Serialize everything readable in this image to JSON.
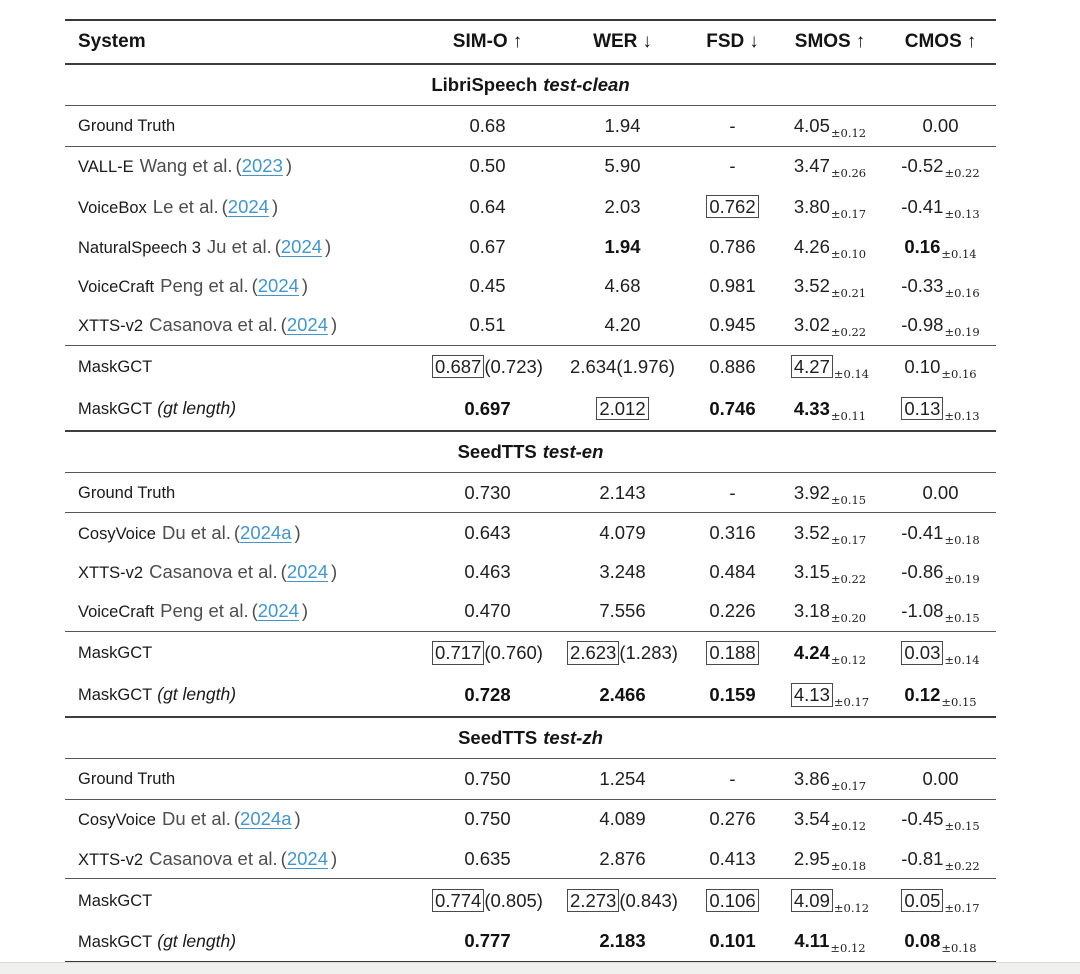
{
  "punct": {
    "open": "(",
    "close": ")"
  },
  "colors": {
    "link": "#4695c8",
    "text": "#1f1f1f",
    "muted_text": "#4e4e4e",
    "rule_heavy": "#383838",
    "rule_light": "#555555",
    "scrollbar_track": "#f0f0ee"
  },
  "table": {
    "columns": [
      {
        "label": "System",
        "arrow": ""
      },
      {
        "label": "SIM-O",
        "arrow": "↑"
      },
      {
        "label": "WER",
        "arrow": "↓"
      },
      {
        "label": "FSD",
        "arrow": "↓"
      },
      {
        "label": "SMOS",
        "arrow": "↑"
      },
      {
        "label": "CMOS",
        "arrow": "↑"
      }
    ],
    "sections": [
      {
        "title": {
          "dataset": "LibriSpeech",
          "subset": "test-clean"
        },
        "groups": [
          [
            {
              "system": {
                "name": "Ground Truth"
              },
              "cells": [
                {
                  "v": "0.68"
                },
                {
                  "v": "1.94"
                },
                {
                  "v": "-"
                },
                {
                  "v": "4.05",
                  "sub": "±0.12"
                },
                {
                  "v": "0.00"
                }
              ]
            }
          ],
          [
            {
              "system": {
                "name": "VALL-E",
                "authors": "Wang et al.",
                "cite": "2023"
              },
              "cells": [
                {
                  "v": "0.50"
                },
                {
                  "v": "5.90"
                },
                {
                  "v": "-"
                },
                {
                  "v": "3.47",
                  "sub": "±0.26"
                },
                {
                  "v": "-0.52",
                  "sub": "±0.22"
                }
              ]
            },
            {
              "system": {
                "name": "VoiceBox",
                "authors": "Le et al.",
                "cite": "2024"
              },
              "cells": [
                {
                  "v": "0.64"
                },
                {
                  "v": "2.03"
                },
                {
                  "v": "0.762",
                  "boxed": true
                },
                {
                  "v": "3.80",
                  "sub": "±0.17"
                },
                {
                  "v": "-0.41",
                  "sub": "±0.13"
                }
              ]
            },
            {
              "system": {
                "name": "NaturalSpeech 3",
                "authors": "Ju et al.",
                "cite": "2024"
              },
              "cells": [
                {
                  "v": "0.67"
                },
                {
                  "v": "1.94",
                  "bold": true
                },
                {
                  "v": "0.786"
                },
                {
                  "v": "4.26",
                  "sub": "±0.10"
                },
                {
                  "v": "0.16",
                  "bold": true,
                  "sub": "±0.14"
                }
              ]
            },
            {
              "system": {
                "name": "VoiceCraft",
                "authors": "Peng et al.",
                "cite": "2024"
              },
              "cells": [
                {
                  "v": "0.45"
                },
                {
                  "v": "4.68"
                },
                {
                  "v": "0.981"
                },
                {
                  "v": "3.52",
                  "sub": "±0.21"
                },
                {
                  "v": "-0.33",
                  "sub": "±0.16"
                }
              ]
            },
            {
              "system": {
                "name": "XTTS-v2",
                "authors": "Casanova et al.",
                "cite": "2024"
              },
              "cells": [
                {
                  "v": "0.51"
                },
                {
                  "v": "4.20"
                },
                {
                  "v": "0.945"
                },
                {
                  "v": "3.02",
                  "sub": "±0.22"
                },
                {
                  "v": "-0.98",
                  "sub": "±0.19"
                }
              ]
            }
          ],
          [
            {
              "system": {
                "name": "MaskGCT"
              },
              "cells": [
                {
                  "v": "0.687",
                  "boxed": true,
                  "paren": "(0.723)"
                },
                {
                  "v": "2.634",
                  "paren": "(1.976)"
                },
                {
                  "v": "0.886"
                },
                {
                  "v": "4.27",
                  "boxed": true,
                  "sub": "±0.14"
                },
                {
                  "v": "0.10",
                  "sub": "±0.16"
                }
              ]
            },
            {
              "system": {
                "name": "MaskGCT",
                "note": "(gt length)"
              },
              "cells": [
                {
                  "v": "0.697",
                  "bold": true
                },
                {
                  "v": "2.012",
                  "boxed": true
                },
                {
                  "v": "0.746",
                  "bold": true
                },
                {
                  "v": "4.33",
                  "bold": true,
                  "sub": "±0.11"
                },
                {
                  "v": "0.13",
                  "boxed": true,
                  "sub": "±0.13"
                }
              ]
            }
          ]
        ]
      },
      {
        "title": {
          "dataset": "SeedTTS",
          "subset": "test-en"
        },
        "groups": [
          [
            {
              "system": {
                "name": "Ground Truth"
              },
              "cells": [
                {
                  "v": "0.730"
                },
                {
                  "v": "2.143"
                },
                {
                  "v": "-"
                },
                {
                  "v": "3.92",
                  "sub": "±0.15"
                },
                {
                  "v": "0.00"
                }
              ]
            }
          ],
          [
            {
              "system": {
                "name": "CosyVoice",
                "authors": "Du et al.",
                "cite": "2024a"
              },
              "cells": [
                {
                  "v": "0.643"
                },
                {
                  "v": "4.079"
                },
                {
                  "v": "0.316"
                },
                {
                  "v": "3.52",
                  "sub": "±0.17"
                },
                {
                  "v": "-0.41",
                  "sub": "±0.18"
                }
              ]
            },
            {
              "system": {
                "name": "XTTS-v2",
                "authors": "Casanova et al.",
                "cite": "2024"
              },
              "cells": [
                {
                  "v": "0.463"
                },
                {
                  "v": "3.248"
                },
                {
                  "v": "0.484"
                },
                {
                  "v": "3.15",
                  "sub": "±0.22"
                },
                {
                  "v": "-0.86",
                  "sub": "±0.19"
                }
              ]
            },
            {
              "system": {
                "name": "VoiceCraft",
                "authors": "Peng et al.",
                "cite": "2024"
              },
              "cells": [
                {
                  "v": "0.470"
                },
                {
                  "v": "7.556"
                },
                {
                  "v": "0.226"
                },
                {
                  "v": "3.18",
                  "sub": "±0.20"
                },
                {
                  "v": "-1.08",
                  "sub": "±0.15"
                }
              ]
            }
          ],
          [
            {
              "system": {
                "name": "MaskGCT"
              },
              "cells": [
                {
                  "v": "0.717",
                  "boxed": true,
                  "paren": "(0.760)"
                },
                {
                  "v": "2.623",
                  "boxed": true,
                  "paren": "(1.283)"
                },
                {
                  "v": "0.188",
                  "boxed": true
                },
                {
                  "v": "4.24",
                  "bold": true,
                  "sub": "±0.12"
                },
                {
                  "v": "0.03",
                  "boxed": true,
                  "sub": "±0.14"
                }
              ]
            },
            {
              "system": {
                "name": "MaskGCT",
                "note": "(gt length)"
              },
              "cells": [
                {
                  "v": "0.728",
                  "bold": true
                },
                {
                  "v": "2.466",
                  "bold": true
                },
                {
                  "v": "0.159",
                  "bold": true
                },
                {
                  "v": "4.13",
                  "boxed": true,
                  "sub": "±0.17"
                },
                {
                  "v": "0.12",
                  "bold": true,
                  "sub": "±0.15"
                }
              ]
            }
          ]
        ]
      },
      {
        "title": {
          "dataset": "SeedTTS",
          "subset": "test-zh"
        },
        "groups": [
          [
            {
              "system": {
                "name": "Ground Truth"
              },
              "cells": [
                {
                  "v": "0.750"
                },
                {
                  "v": "1.254"
                },
                {
                  "v": "-"
                },
                {
                  "v": "3.86",
                  "sub": "±0.17"
                },
                {
                  "v": "0.00"
                }
              ]
            }
          ],
          [
            {
              "system": {
                "name": "CosyVoice",
                "authors": "Du et al.",
                "cite": "2024a"
              },
              "cells": [
                {
                  "v": "0.750"
                },
                {
                  "v": "4.089"
                },
                {
                  "v": "0.276"
                },
                {
                  "v": "3.54",
                  "sub": "±0.12"
                },
                {
                  "v": "-0.45",
                  "sub": "±0.15"
                }
              ]
            },
            {
              "system": {
                "name": "XTTS-v2",
                "authors": "Casanova et al.",
                "cite": "2024"
              },
              "cells": [
                {
                  "v": "0.635"
                },
                {
                  "v": "2.876"
                },
                {
                  "v": "0.413"
                },
                {
                  "v": "2.95",
                  "sub": "±0.18"
                },
                {
                  "v": "-0.81",
                  "sub": "±0.22"
                }
              ]
            }
          ],
          [
            {
              "system": {
                "name": "MaskGCT"
              },
              "cells": [
                {
                  "v": "0.774",
                  "boxed": true,
                  "paren": "(0.805)"
                },
                {
                  "v": "2.273",
                  "boxed": true,
                  "paren": "(0.843)"
                },
                {
                  "v": "0.106",
                  "boxed": true
                },
                {
                  "v": "4.09",
                  "boxed": true,
                  "sub": "±0.12"
                },
                {
                  "v": "0.05",
                  "boxed": true,
                  "sub": "±0.17"
                }
              ]
            },
            {
              "system": {
                "name": "MaskGCT",
                "note": "(gt length)"
              },
              "cells": [
                {
                  "v": "0.777",
                  "bold": true
                },
                {
                  "v": "2.183",
                  "bold": true
                },
                {
                  "v": "0.101",
                  "bold": true
                },
                {
                  "v": "4.11",
                  "bold": true,
                  "sub": "±0.12"
                },
                {
                  "v": "0.08",
                  "bold": true,
                  "sub": "±0.18"
                }
              ]
            }
          ]
        ]
      }
    ]
  }
}
